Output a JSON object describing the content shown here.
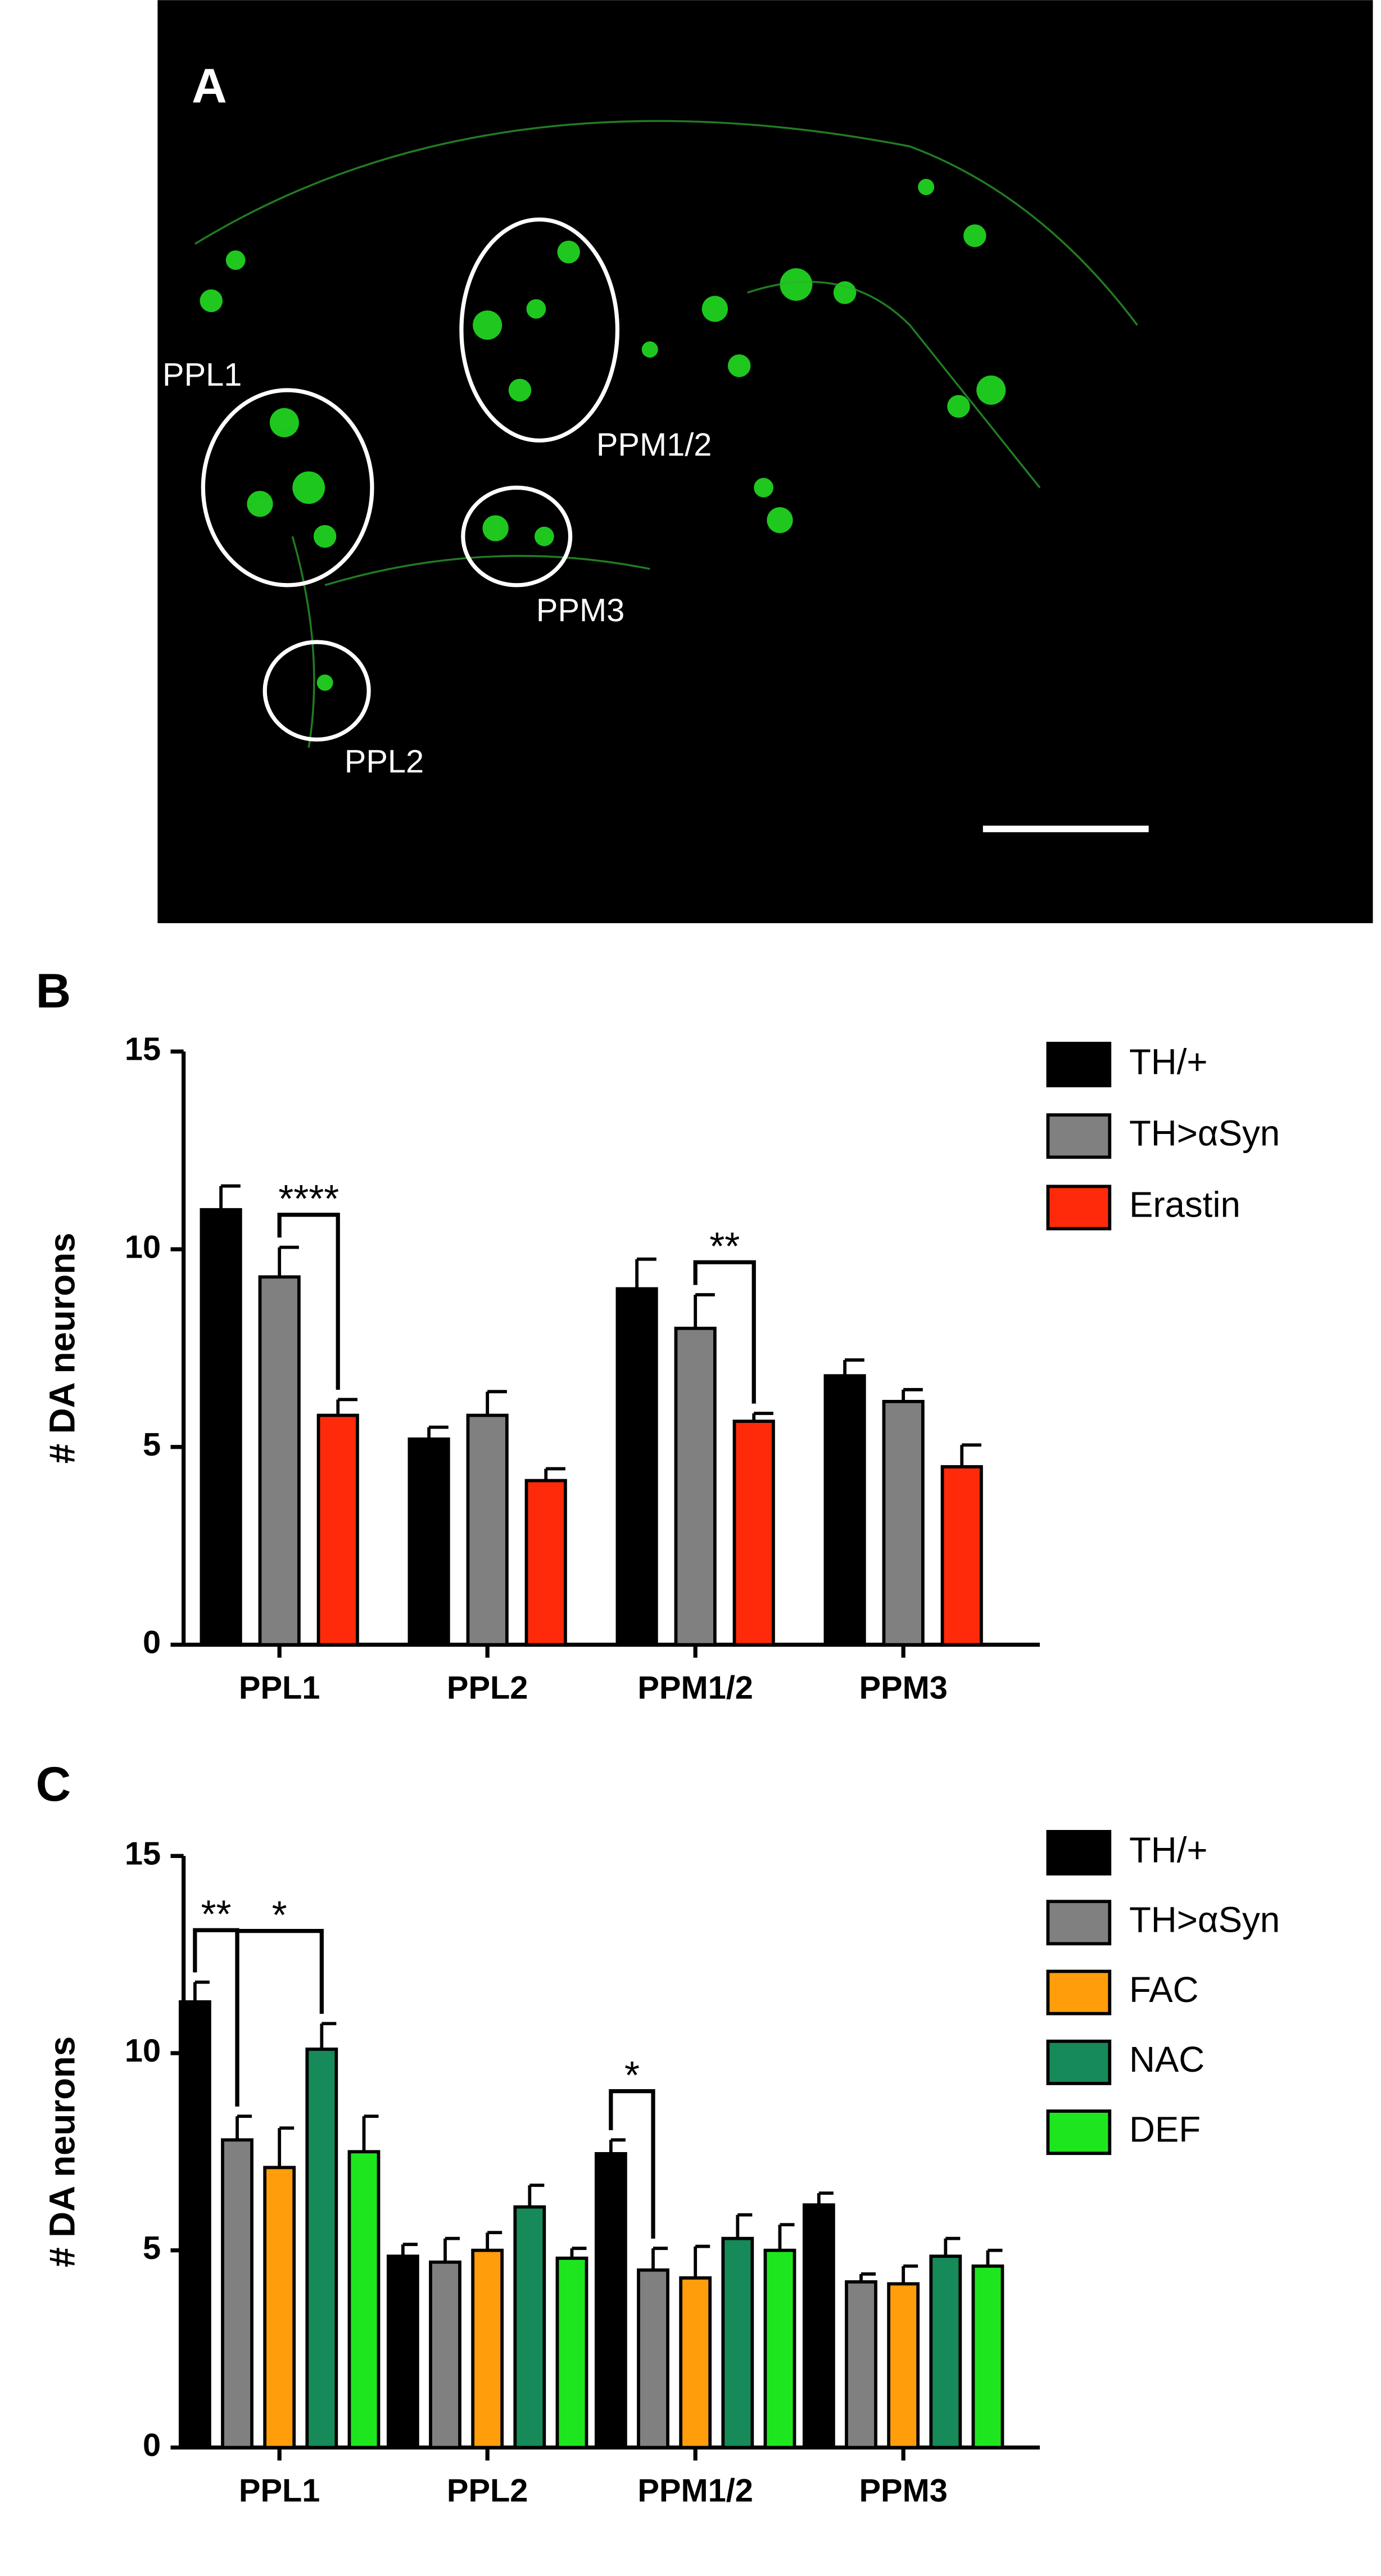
{
  "image": {
    "panel": "A",
    "labels": [
      "PPL1",
      "PPM1/2",
      "PPM3",
      "PPL2"
    ]
  },
  "chart_data": [
    {
      "type": "bar",
      "panel": "B",
      "y_label": "# DA neurons",
      "categories": [
        "PPL1",
        "PPL2",
        "PPM1/2",
        "PPM3"
      ],
      "ylim": [
        0,
        15
      ],
      "yticks": [
        0,
        5,
        10,
        15
      ],
      "series": [
        {
          "name": "TH/+",
          "color": "#000000",
          "values": [
            11.0,
            5.2,
            9.0,
            6.8
          ],
          "errors": [
            0.6,
            0.3,
            0.75,
            0.4
          ]
        },
        {
          "name": "TH>αSyn",
          "color": "#808080",
          "values": [
            9.3,
            5.8,
            8.0,
            6.15
          ],
          "errors": [
            0.75,
            0.6,
            0.85,
            0.3
          ]
        },
        {
          "name": "Erastin",
          "color": "#ff2a0a",
          "values": [
            5.8,
            4.15,
            5.65,
            4.5
          ],
          "errors": [
            0.4,
            0.3,
            0.2,
            0.55
          ]
        }
      ],
      "annotations": [
        "****",
        "**"
      ]
    },
    {
      "type": "bar",
      "panel": "C",
      "y_label": "# DA neurons",
      "categories": [
        "PPL1",
        "PPL2",
        "PPM1/2",
        "PPM3"
      ],
      "ylim": [
        0,
        15
      ],
      "yticks": [
        0,
        5,
        10,
        15
      ],
      "series": [
        {
          "name": "TH/+",
          "color": "#000000",
          "values": [
            11.3,
            4.85,
            7.45,
            6.15
          ],
          "errors": [
            0.5,
            0.3,
            0.35,
            0.3
          ]
        },
        {
          "name": "TH>αSyn",
          "color": "#808080",
          "values": [
            7.8,
            4.7,
            4.5,
            4.2
          ],
          "errors": [
            0.6,
            0.6,
            0.55,
            0.2
          ]
        },
        {
          "name": "FAC",
          "color": "#ff9d0a",
          "values": [
            7.1,
            5.0,
            4.3,
            4.15
          ],
          "errors": [
            1.0,
            0.45,
            0.8,
            0.45
          ]
        },
        {
          "name": "NAC",
          "color": "#168a58",
          "values": [
            10.1,
            6.1,
            5.3,
            4.85
          ],
          "errors": [
            0.65,
            0.55,
            0.6,
            0.45
          ]
        },
        {
          "name": "DEF",
          "color": "#1ee61e",
          "values": [
            7.5,
            4.8,
            5.0,
            4.6
          ],
          "errors": [
            0.9,
            0.25,
            0.65,
            0.4
          ]
        }
      ],
      "annotations": [
        "**",
        "*",
        "*"
      ]
    }
  ]
}
